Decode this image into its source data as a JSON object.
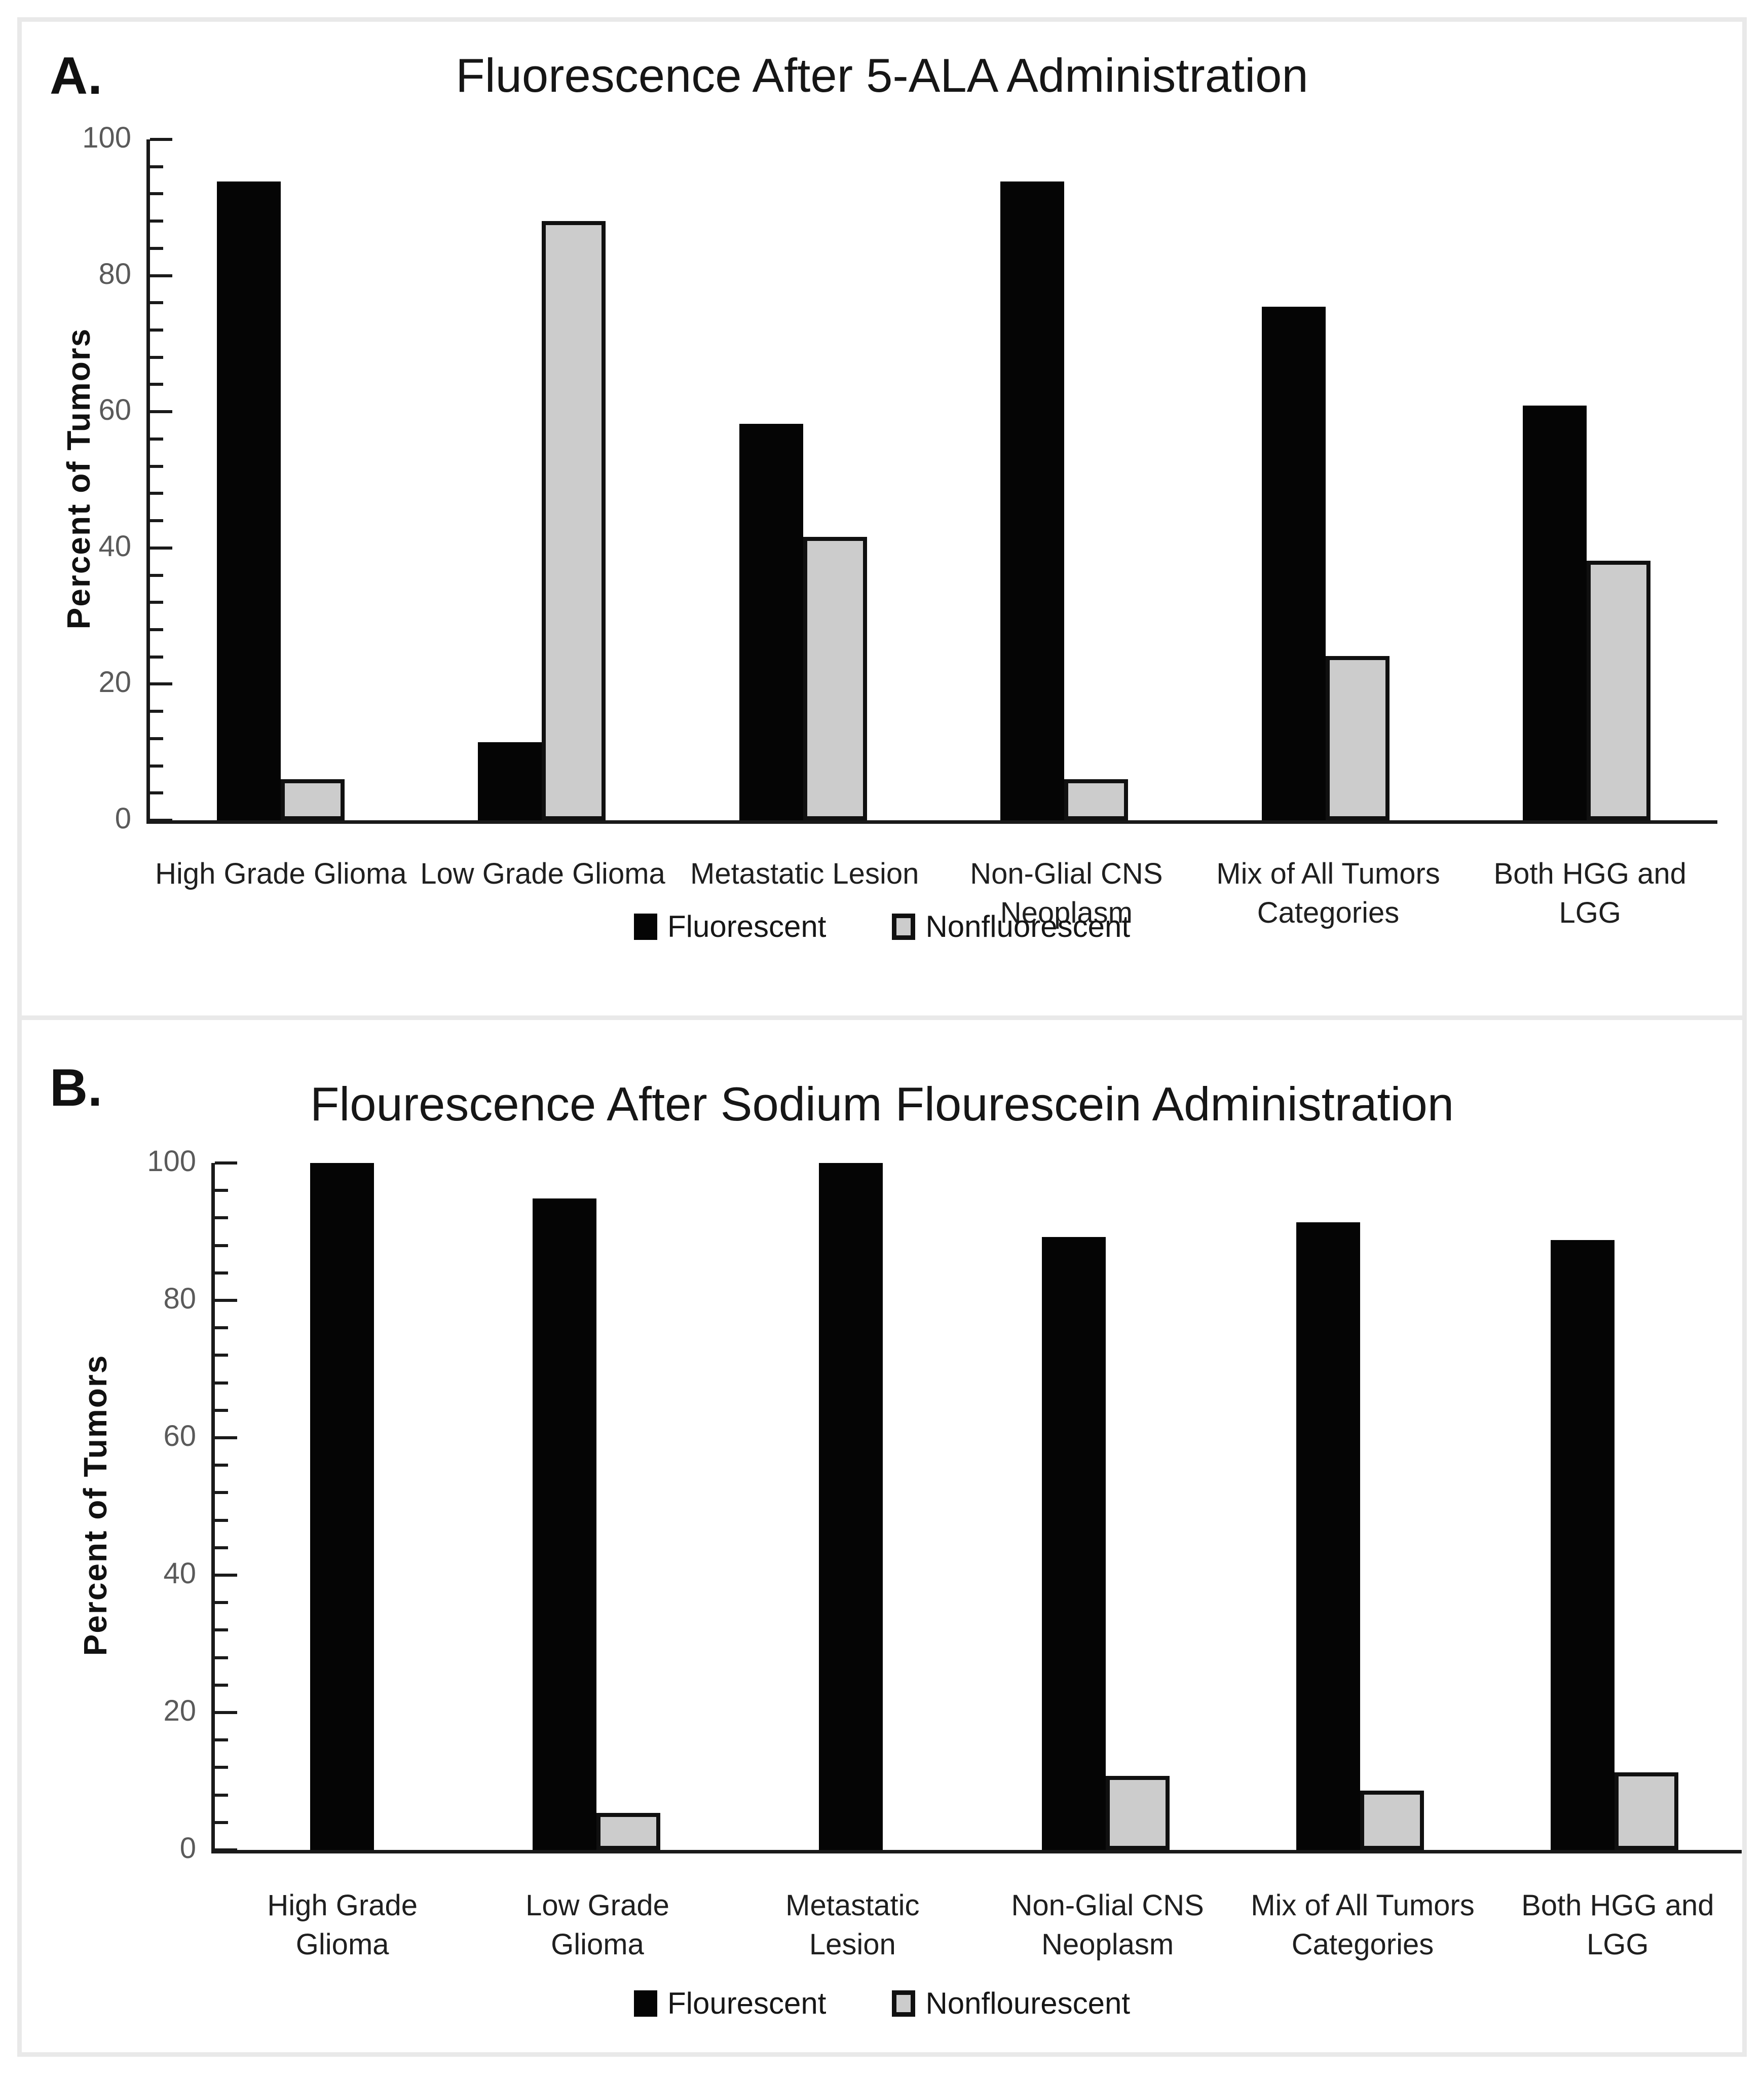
{
  "figure": {
    "frame_color": "#e9e9e9",
    "background": "#ffffff",
    "bar_black": "#050505",
    "bar_gray_fill": "#cccccc",
    "bar_gray_border": "#101010"
  },
  "chart_data": [
    {
      "type": "bar",
      "panel_label": "A.",
      "title": "Fluorescence After 5-ALA Administration",
      "xlabel": "",
      "ylabel": "Percent of Tumors",
      "ylim": [
        0,
        100
      ],
      "yticks": [
        0,
        20,
        40,
        60,
        80,
        100
      ],
      "minor_tick_step": 4,
      "grid": false,
      "legend_position": "bottom",
      "categories": [
        "High Grade Glioma",
        "Low Grade Glioma",
        "Metastatic Lesion",
        "Non-Glial CNS\nNeoplasm",
        "Mix of All Tumors\nCategories",
        "Both HGG and LGG"
      ],
      "series": [
        {
          "name": "Fluorescent",
          "style": "solid",
          "color": "#050505",
          "values": [
            93.8,
            11.5,
            58.2,
            93.8,
            75.4,
            60.9
          ]
        },
        {
          "name": "Nonfluorescent",
          "style": "outlined",
          "color": "#cccccc",
          "border_color": "#101010",
          "values": [
            6.0,
            88.0,
            41.6,
            6.0,
            24.1,
            38.1
          ]
        }
      ]
    },
    {
      "type": "bar",
      "panel_label": "B.",
      "title": "Flourescence After Sodium Flourescein Administration",
      "xlabel": "",
      "ylabel": "Percent of Tumors",
      "ylim": [
        0,
        100
      ],
      "yticks": [
        0,
        20,
        40,
        60,
        80,
        100
      ],
      "minor_tick_step": 4,
      "grid": false,
      "legend_position": "bottom",
      "categories": [
        "High Grade\nGlioma",
        "Low Grade\nGlioma",
        "Metastatic\nLesion",
        "Non-Glial CNS\nNeoplasm",
        "Mix of All Tumors\nCategories",
        "Both HGG and\nLGG"
      ],
      "series": [
        {
          "name": "Flourescent",
          "style": "solid",
          "color": "#050505",
          "values": [
            100,
            94.8,
            100,
            89.2,
            91.4,
            88.8
          ]
        },
        {
          "name": "Nonflourescent",
          "style": "outlined",
          "color": "#cccccc",
          "border_color": "#101010",
          "values": [
            0,
            5.4,
            0,
            10.8,
            8.6,
            11.3
          ]
        }
      ]
    }
  ]
}
